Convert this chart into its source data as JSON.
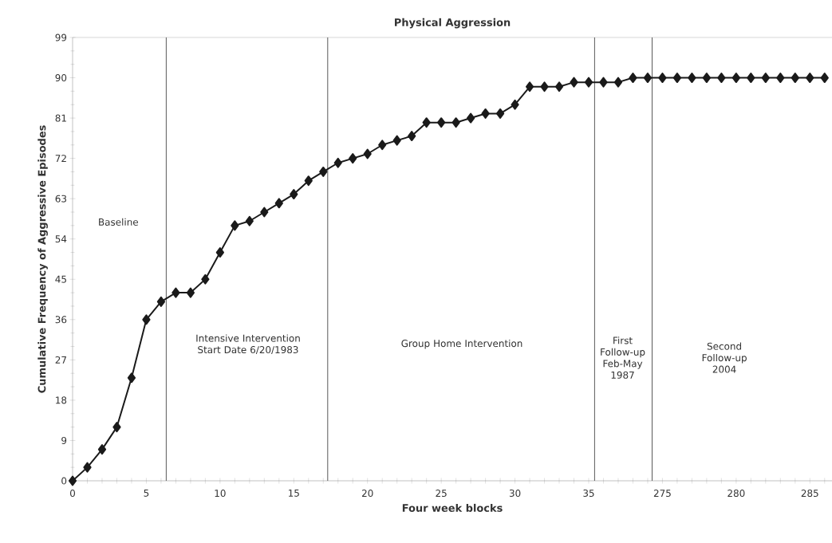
{
  "chart_data": {
    "type": "line",
    "title": "Physical Aggression",
    "xlabel": "Four week blocks",
    "ylabel": "Cumulative Frequency of Aggressive Episodes",
    "categories": [
      "0",
      null,
      null,
      null,
      null,
      "5",
      null,
      null,
      null,
      null,
      "10",
      null,
      null,
      null,
      null,
      "15",
      null,
      null,
      null,
      null,
      "20",
      null,
      null,
      null,
      null,
      "25",
      null,
      null,
      null,
      null,
      "30",
      null,
      null,
      null,
      null,
      "35",
      null,
      null,
      null,
      null,
      "275",
      null,
      null,
      null,
      null,
      "280",
      null,
      null,
      null,
      null,
      "285",
      null
    ],
    "values": [
      0,
      3,
      7,
      12,
      23,
      36,
      40,
      42,
      42,
      45,
      51,
      57,
      58,
      60,
      62,
      64,
      67,
      69,
      71,
      72,
      73,
      75,
      76,
      77,
      80,
      80,
      80,
      81,
      82,
      82,
      84,
      88,
      88,
      88,
      89,
      89,
      89,
      89,
      90,
      90,
      90,
      90,
      90,
      90,
      90,
      90,
      90,
      90,
      90,
      90,
      90,
      90
    ],
    "color": "#1a1a1a",
    "marker": "diamond",
    "line_style": "solid",
    "ylim": [
      0,
      99
    ],
    "yticks": [
      0,
      9,
      18,
      27,
      36,
      45,
      54,
      63,
      72,
      81,
      90,
      99
    ],
    "annotations": [
      "Baseline",
      "Intensive Intervention Start Date 6/20/1983",
      "Group Home Intervention",
      "First Follow-up Feb-May 1987",
      "Second Follow-up 2004"
    ]
  }
}
